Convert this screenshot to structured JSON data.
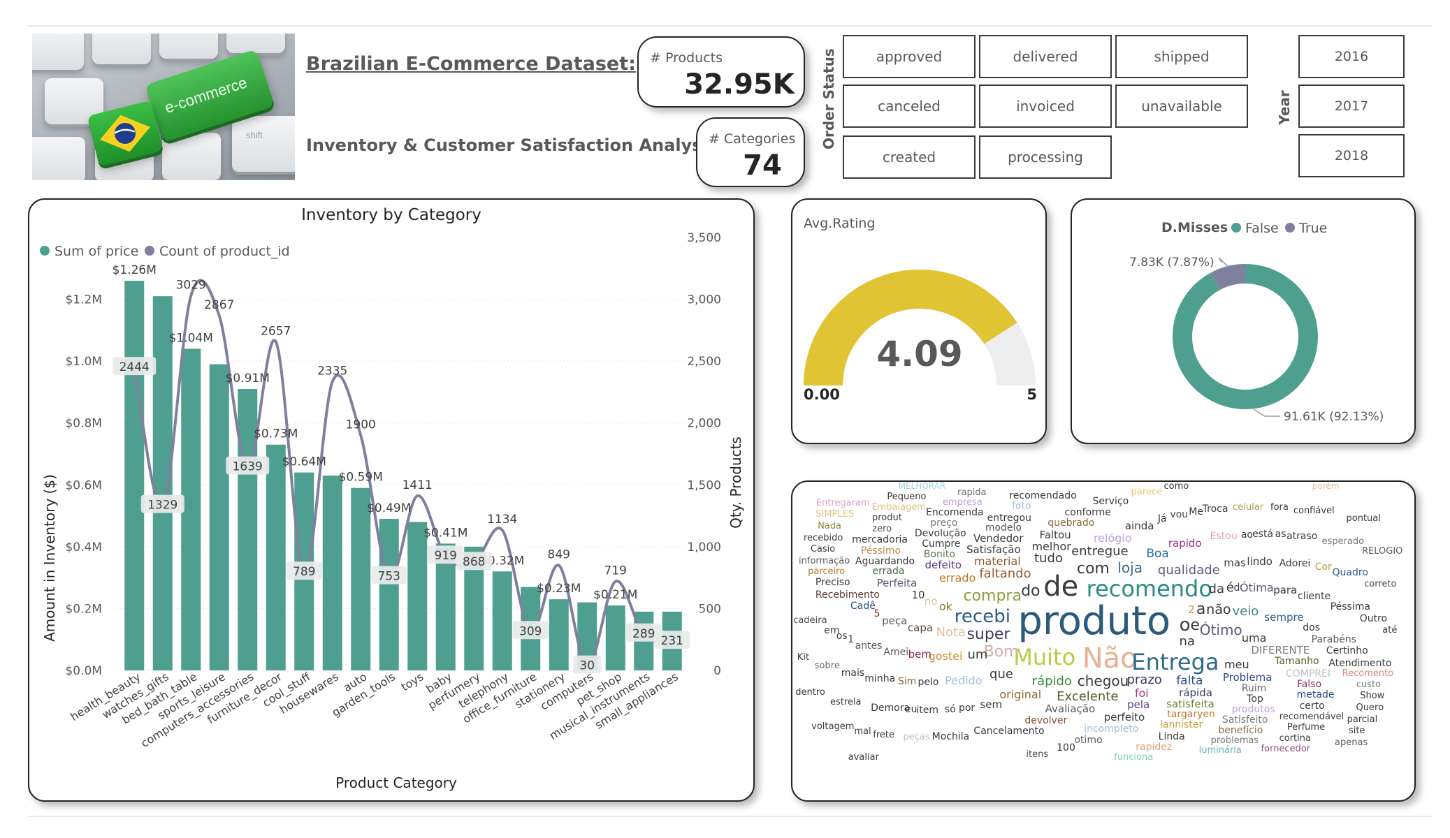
{
  "header": {
    "title": "Brazilian E-Commerce Dataset:",
    "subtitle": "Inventory & Customer Satisfaction Analysis",
    "hero_key_label": "e-commerce",
    "hero_small_key": "shift"
  },
  "kpis": {
    "products_label": "# Products",
    "products_value": "32.95K",
    "categories_label": "# Categories",
    "categories_value": "74"
  },
  "order_status": {
    "label": "Order Status",
    "options": [
      "approved",
      "delivered",
      "shipped",
      "canceled",
      "invoiced",
      "unavailable",
      "created",
      "processing"
    ]
  },
  "year_slicer": {
    "label": "Year",
    "options": [
      "2016",
      "2017",
      "2018"
    ]
  },
  "colors": {
    "bar": "#4e9f8f",
    "line": "#7f7f9e",
    "gauge": "#e0c434",
    "gauge_track": "#eeeeee",
    "donut_false": "#4e9f8f",
    "donut_true": "#7f7f9e"
  },
  "chart_data": [
    {
      "type": "bar",
      "title": "Inventory by Category",
      "xlabel": "Product Category",
      "ylabel": "Amount in Inventory ($)",
      "y2label": "Qty. Products",
      "ylim": [
        0,
        1400000
      ],
      "y2lim": [
        0,
        3500
      ],
      "yticks": [
        "$0.0M",
        "$0.2M",
        "$0.4M",
        "$0.6M",
        "$0.8M",
        "$1.0M",
        "$1.2M"
      ],
      "y2ticks": [
        "0",
        "500",
        "1,000",
        "1,500",
        "2,000",
        "2,500",
        "3,000",
        "3,500"
      ],
      "legend_position": "top-left",
      "categories": [
        "health_beauty",
        "watches_gifts",
        "bed_bath_table",
        "sports_leisure",
        "computers_accessories",
        "furniture_decor",
        "cool_stuff",
        "housewares",
        "auto",
        "garden_tools",
        "toys",
        "baby",
        "perfumery",
        "telephony",
        "office_furniture",
        "stationery",
        "computers",
        "pet_shop",
        "musical_instruments",
        "small_appliances"
      ],
      "series": [
        {
          "name": "Sum of price",
          "axis": "left",
          "values": [
            1260000,
            1210000,
            1040000,
            990000,
            910000,
            730000,
            640000,
            630000,
            590000,
            490000,
            480000,
            410000,
            400000,
            320000,
            270000,
            230000,
            220000,
            210000,
            190000,
            190000
          ],
          "labels": [
            "$1.26M",
            "",
            "$1.04M",
            "",
            "$0.91M",
            "$0.73M",
            "$0.64M",
            "",
            "$0.59M",
            "$0.49M",
            "",
            "$0.41M",
            "",
            "$0.32M",
            "",
            "$0.23M",
            "",
            "$0.21M",
            "",
            ""
          ]
        },
        {
          "name": "Count of product_id",
          "axis": "right",
          "values": [
            2444,
            1329,
            3029,
            2867,
            1639,
            2657,
            789,
            2335,
            1900,
            753,
            1411,
            919,
            868,
            1134,
            309,
            849,
            30,
            719,
            289,
            231
          ],
          "labels": [
            "2444",
            "1329",
            "3029",
            "2867",
            "1639",
            "2657",
            "789",
            "2335",
            "1900",
            "753",
            "1411",
            "919",
            "868",
            "1134",
            "309",
            "849",
            "30",
            "719",
            "289",
            "231"
          ]
        }
      ]
    },
    {
      "type": "gauge",
      "title": "Avg.Rating",
      "value": 4.09,
      "value_label": "4.09",
      "min": 0,
      "min_label": "0.00",
      "max": 5,
      "max_label": "5"
    },
    {
      "type": "pie",
      "title": "D.Misses",
      "legend_position": "top",
      "categories": [
        "False",
        "True"
      ],
      "values": [
        91610,
        7830
      ],
      "labels": [
        "91.61K (92.13%)",
        "7.83K (7.87%)"
      ]
    }
  ],
  "wordcloud": {
    "words": [
      [
        "capa",
        15,
        "#5c4a3a"
      ],
      [
        "material",
        16,
        "#8b5a2b"
      ],
      [
        "recomendo",
        32,
        "#2b8a84"
      ],
      [
        "parece",
        13,
        "#e7c96a"
      ],
      [
        "rápida",
        15,
        "#3a3a5a"
      ],
      [
        "MELHORAR",
        12,
        "#9ad4e0"
      ],
      [
        "sobre",
        13,
        "#6a6a6a"
      ],
      [
        "faltando",
        18,
        "#a05a2c"
      ],
      [
        "Ruim",
        14,
        "#6a6a6a"
      ],
      [
        "pelo",
        14,
        "#3a3a3a"
      ],
      [
        "problemas",
        13,
        "#7a7a7a"
      ],
      [
        "Boa",
        17,
        "#2b6a9a"
      ],
      [
        "Amei",
        14,
        "#5a5a5a"
      ],
      [
        "Bonito",
        14,
        "#5a7a4a"
      ],
      [
        "2",
        15,
        "#c99a3a"
      ],
      [
        "no",
        15,
        "#e0c0a0"
      ],
      [
        "cadeira",
        13,
        "#4a4a4a"
      ],
      [
        "parceiro",
        13,
        "#b07a2a"
      ],
      [
        "Satisfação",
        15,
        "#3a3a3a"
      ],
      [
        "empresa",
        13,
        "#c0a0e0"
      ],
      [
        "Recomento",
        13,
        "#e08a7a"
      ],
      [
        "sempre",
        15,
        "#2b5a8a"
      ],
      [
        "Avaliação",
        15,
        "#5a5a5a"
      ],
      [
        "quebrado",
        14,
        "#8a6a3a"
      ],
      [
        "celular",
        13,
        "#b09a5a"
      ],
      [
        "Tamanho",
        14,
        "#5a5a2a"
      ],
      [
        "Faltou",
        15,
        "#3a3a3a"
      ],
      [
        "funciona",
        13,
        "#7ad0c0"
      ],
      [
        "original",
        16,
        "#8a6a2a"
      ],
      [
        "itens",
        13,
        "#4a4a4a"
      ],
      [
        "ok",
        16,
        "#8a7a2a"
      ],
      [
        "dos",
        14,
        "#3a3a3a"
      ],
      [
        "DIFERENTE",
        15,
        "#7a7a7a"
      ],
      [
        "devolver",
        14,
        "#8a4a2a"
      ],
      [
        "targaryen",
        14,
        "#c07a2a"
      ],
      [
        "Problema",
        15,
        "#2b4a8a"
      ],
      [
        "super",
        22,
        "#3a3a5a"
      ],
      [
        "pela",
        15,
        "#5a3a8a"
      ],
      [
        "uma",
        16,
        "#3a3a3a"
      ],
      [
        "modelo",
        14,
        "#5a5a5a"
      ],
      [
        "Estou",
        14,
        "#e0a0c0"
      ],
      [
        "cliente",
        14,
        "#3a3a3a"
      ],
      [
        "Muito",
        32,
        "#b0d040"
      ],
      [
        "rápido",
        18,
        "#3a8a3a"
      ],
      [
        "rapido",
        15,
        "#a02a8a"
      ],
      [
        "zero",
        13,
        "#4a4a4a"
      ],
      [
        "defeito",
        15,
        "#5a3a8a"
      ],
      [
        "na",
        18,
        "#3a3a3a"
      ],
      [
        "d",
        14,
        "#3a3a3a"
      ],
      [
        "por",
        14,
        "#3a3a3a"
      ],
      [
        "qualidade",
        18,
        "#5a5a7a"
      ],
      [
        "incompleto",
        14,
        "#a0c0e0"
      ],
      [
        "5",
        14,
        "#8a2a2a"
      ],
      [
        "recomendável",
        13,
        "#3a3a3a"
      ],
      [
        "porém",
        12,
        "#e0c0a0"
      ],
      [
        "Top",
        14,
        "#3a3a3a"
      ],
      [
        "Sim",
        14,
        "#8a6a3a"
      ],
      [
        "Cumpre",
        14,
        "#3a3a3a"
      ],
      [
        "mas",
        15,
        "#3a3a3a"
      ],
      [
        "esperado",
        13,
        "#7a7a7a"
      ],
      [
        "recebi",
        26,
        "#2b5a8a"
      ],
      [
        "antes",
        14,
        "#5a5a5a"
      ],
      [
        "errada",
        14,
        "#3a6a3a"
      ],
      [
        "conforme",
        14,
        "#3a3a3a"
      ],
      [
        "correto",
        13,
        "#4a4a4a"
      ],
      [
        "bem",
        15,
        "#8a2a5a"
      ],
      [
        "luminária",
        13,
        "#6ab0c0"
      ],
      [
        "COMPREI",
        14,
        "#c0c0c0"
      ],
      [
        "não",
        19,
        "#3a3a3a"
      ],
      [
        "Adorei",
        14,
        "#3a3a3a"
      ],
      [
        "entregue",
        18,
        "#3a3a3a"
      ],
      [
        "Já",
        14,
        "#3a3a3a"
      ],
      [
        "lannister",
        14,
        "#c0a040"
      ],
      [
        "satisfeita",
        15,
        "#6a8a2a"
      ],
      [
        "prazo",
        18,
        "#3a3a5a"
      ],
      [
        "foi",
        16,
        "#a03a8a"
      ],
      [
        "tudo",
        18,
        "#3a3a3a"
      ],
      [
        "Entrega",
        32,
        "#2b6a8a"
      ],
      [
        "Cadê",
        14,
        "#2b4a8a"
      ],
      [
        "entregou",
        14,
        "#3a3a3a"
      ],
      [
        "Parabéns",
        14,
        "#5a5a5a"
      ],
      [
        "só",
        14,
        "#3a3a3a"
      ],
      [
        "estrela",
        13,
        "#3a3a3a"
      ],
      [
        "10",
        15,
        "#3a3a3a"
      ],
      [
        "compra",
        22,
        "#8aa040"
      ],
      [
        "ao",
        14,
        "#3a3a3a"
      ],
      [
        "gostei",
        16,
        "#d08a2a"
      ],
      [
        "do",
        22,
        "#3a3a3a"
      ],
      [
        "loja",
        20,
        "#3a6a8a"
      ],
      [
        "e",
        22,
        "#3a3a3a"
      ],
      [
        "errado",
        16,
        "#c07a2a"
      ],
      [
        "informação",
        13,
        "#5a5a5a"
      ],
      [
        "Vendedor",
        15,
        "#3a3a3a"
      ],
      [
        "Cancelamento",
        14,
        "#3a3a3a"
      ],
      [
        "até",
        13,
        "#3a3a3a"
      ],
      [
        "produtos",
        14,
        "#c0a0e0"
      ],
      [
        "Devolução",
        14,
        "#3a3a3a"
      ],
      [
        "como",
        13,
        "#3a3a3a"
      ],
      [
        "vou",
        14,
        "#4a4a4a"
      ],
      [
        "falta",
        17,
        "#2b4a8a"
      ],
      [
        "rapida",
        13,
        "#6a6a6a"
      ],
      [
        "Aguardando",
        14,
        "#3a3a3a"
      ],
      [
        "minha",
        14,
        "#3a3a3a"
      ],
      [
        "para",
        15,
        "#3a3a3a"
      ],
      [
        "da",
        18,
        "#3a3a3a"
      ],
      [
        "Falso",
        14,
        "#8a2a5a"
      ],
      [
        "otimo",
        14,
        "#5a5a5a"
      ],
      [
        "meu",
        16,
        "#3a3a3a"
      ],
      [
        "custo",
        13,
        "#7a7a7a"
      ],
      [
        "está",
        14,
        "#3a3a3a"
      ],
      [
        "Ótimo",
        20,
        "#5a5a7a"
      ],
      [
        "peças",
        13,
        "#c0c0c0"
      ],
      [
        "que",
        18,
        "#3a3a3a"
      ],
      [
        "Kit",
        13,
        "#3a3a3a"
      ],
      [
        "Péssima",
        14,
        "#3a3a3a"
      ],
      [
        "produt",
        13,
        "#3a3a3a"
      ],
      [
        "com",
        22,
        "#3a3a3a"
      ],
      [
        "item",
        14,
        "#3a3a3a"
      ],
      [
        "1",
        14,
        "#3a3a3a"
      ],
      [
        "melhor",
        16,
        "#3a3a3a"
      ],
      [
        "peça",
        15,
        "#5a5a5a"
      ],
      [
        "Linda",
        14,
        "#3a3a3a"
      ],
      [
        "Não",
        40,
        "#e8b090"
      ],
      [
        "Perfume",
        13,
        "#3a3a3a"
      ],
      [
        "Recebimento",
        14,
        "#5a3a2a"
      ],
      [
        "foto",
        14,
        "#a0c0e0"
      ],
      [
        "perfeito",
        15,
        "#3a3a3a"
      ],
      [
        "chegou",
        20,
        "#3a3a3a"
      ],
      [
        "fora",
        13,
        "#3a3a3a"
      ],
      [
        "Cor",
        14,
        "#c09a40"
      ],
      [
        "Excelente",
        18,
        "#5a5a2a"
      ],
      [
        "Serviço",
        14,
        "#3a3a3a"
      ],
      [
        "Casio",
        13,
        "#3a3a3a"
      ],
      [
        "Certinho",
        14,
        "#3a3a3a"
      ],
      [
        "Satisfeito",
        14,
        "#7a7a7a"
      ],
      [
        "ainda",
        15,
        "#3a3a3a"
      ],
      [
        "Ótima",
        16,
        "#5a5a7a"
      ],
      [
        "a",
        22,
        "#3a3a3a"
      ],
      [
        "preço",
        14,
        "#7a7a7a"
      ],
      [
        "Show",
        13,
        "#3a3a3a"
      ],
      [
        "Me",
        14,
        "#3a3a3a"
      ],
      [
        "os",
        14,
        "#3a3a3a"
      ],
      [
        "Péssimo",
        14,
        "#c08a5a"
      ],
      [
        "Embalagem",
        13,
        "#e0c080"
      ],
      [
        "metade",
        14,
        "#2b4a8a"
      ],
      [
        "um",
        18,
        "#3a3a3a"
      ],
      [
        "Perfeita",
        15,
        "#5a5a7a"
      ],
      [
        "cortina",
        13,
        "#3a3a3a"
      ],
      [
        "as",
        14,
        "#3a3a3a"
      ],
      [
        "Troca",
        14,
        "#3a3a3a"
      ],
      [
        "confiável",
        13,
        "#3a3a3a"
      ],
      [
        "benefício",
        14,
        "#8a6a3a"
      ],
      [
        "eu",
        14,
        "#3a3a3a"
      ],
      [
        "lindo",
        15,
        "#3a3a3a"
      ],
      [
        "frete",
        13,
        "#3a3a3a"
      ],
      [
        "RELOGIO",
        13,
        "#5a5a5a"
      ],
      [
        "mais",
        14,
        "#3a3a3a"
      ],
      [
        "Quadro",
        14,
        "#2b5a8a"
      ],
      [
        "recebido",
        13,
        "#3a3a3a"
      ],
      [
        "Nota",
        18,
        "#e0c0a0"
      ],
      [
        "produto",
        56,
        "#2b5a7a"
      ],
      [
        "rapidez",
        14,
        "#e0a07a"
      ],
      [
        "Preciso",
        14,
        "#3a3a3a"
      ],
      [
        "Bom",
        22,
        "#d0b0a0"
      ],
      [
        "dentro",
        13,
        "#3a3a3a"
      ],
      [
        "Encomenda",
        14,
        "#3a3a3a"
      ],
      [
        "recomendado",
        14,
        "#3a3a3a"
      ],
      [
        "atraso",
        14,
        "#3a3a3a"
      ],
      [
        "veio",
        18,
        "#3a8a8a"
      ],
      [
        "Quero",
        13,
        "#3a3a3a"
      ],
      [
        "Pequeno",
        13,
        "#3a3a3a"
      ],
      [
        "fornecedor",
        13,
        "#8a4a8a"
      ],
      [
        "relógio",
        16,
        "#c0a0e0"
      ],
      [
        "sem",
        15,
        "#3a3a3a"
      ],
      [
        "100",
        14,
        "#3a3a3a"
      ],
      [
        "o",
        26,
        "#3a3a3a"
      ],
      [
        "de",
        40,
        "#3a3a3a"
      ],
      [
        "Atendimento",
        14,
        "#3a3a3a"
      ],
      [
        "mercadoria",
        14,
        "#3a3a3a"
      ],
      [
        "é",
        18,
        "#3a3a3a"
      ],
      [
        "em",
        14,
        "#3a3a3a"
      ],
      [
        "mal",
        13,
        "#3a3a3a"
      ],
      [
        "Outro",
        14,
        "#3a3a3a"
      ],
      [
        "Pedido",
        16,
        "#a0c0e0"
      ],
      [
        "Demora",
        14,
        "#3a3a3a"
      ],
      [
        "certo",
        14,
        "#3a3a3a"
      ],
      [
        "Nada",
        13,
        "#8a8a3a"
      ],
      [
        "parcial",
        13,
        "#3a3a3a"
      ],
      [
        "voltagem",
        13,
        "#3a3a3a"
      ],
      [
        "pontual",
        13,
        "#3a3a3a"
      ],
      [
        "SIMPLES",
        13,
        "#e0c080"
      ],
      [
        "site",
        13,
        "#3a3a3a"
      ],
      [
        "Mochila",
        14,
        "#3a3a3a"
      ],
      [
        "Entregaram",
        13,
        "#e0a0c0"
      ],
      [
        "apenas",
        13,
        "#5a5a5a"
      ],
      [
        "avaliar",
        13,
        "#3a3a3a"
      ]
    ]
  }
}
